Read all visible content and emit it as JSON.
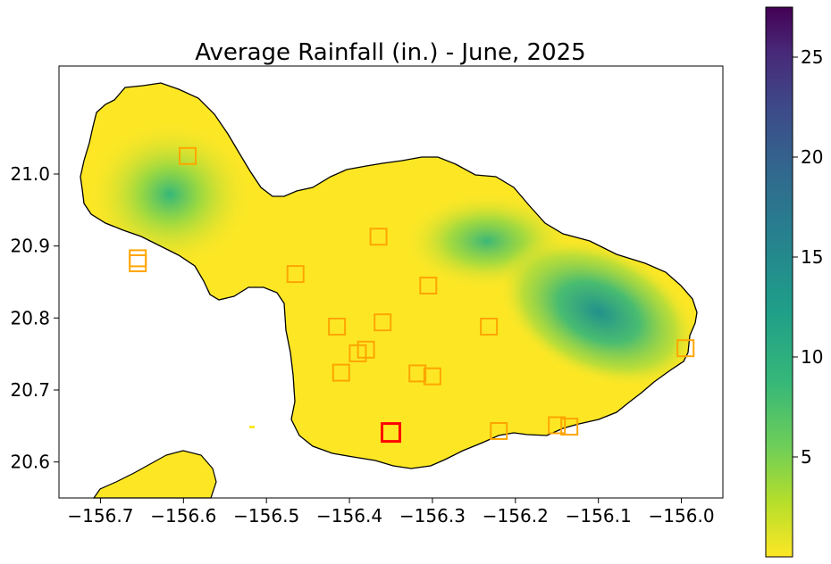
{
  "title": "Average Rainfall (in.) - June, 2025",
  "map": {
    "x_ticks": [
      "−156.7",
      "−156.6",
      "−156.5",
      "−156.4",
      "−156.3",
      "−156.2",
      "−156.1",
      "−156.0"
    ],
    "y_ticks": [
      "20.6",
      "20.7",
      "20.8",
      "20.9",
      "21.0"
    ],
    "colorbar_ticks": [
      "5",
      "10",
      "15",
      "20",
      "25"
    ],
    "colorbar_range": [
      0,
      27.5
    ],
    "colormap": "viridis (reversed: yellow = low, purple = high)",
    "colors": {
      "low": "#fde725",
      "mid_low": "#8fd744",
      "mid": "#35b779",
      "mid_high": "#21918c",
      "high_mid": "#31688e",
      "high": "#440154",
      "coastline": "#000000",
      "station_marker": "#ffa500",
      "selected_station_marker": "#ff0000"
    }
  },
  "chart_data": {
    "type": "heatmap",
    "title": "Average Rainfall (in.) - June, 2025",
    "xlim": [
      -156.75,
      -155.95
    ],
    "ylim": [
      20.55,
      21.15
    ],
    "colorbar_label": "",
    "colorbar_ticks": [
      5,
      10,
      15,
      20,
      25
    ],
    "stations": [
      {
        "lon": -156.595,
        "lat": 21.025
      },
      {
        "lon": -156.655,
        "lat": 20.883
      },
      {
        "lon": -156.655,
        "lat": 20.876
      },
      {
        "lon": -156.465,
        "lat": 20.861
      },
      {
        "lon": -156.365,
        "lat": 20.913
      },
      {
        "lon": -156.305,
        "lat": 20.845
      },
      {
        "lon": -156.415,
        "lat": 20.788
      },
      {
        "lon": -156.36,
        "lat": 20.794
      },
      {
        "lon": -156.232,
        "lat": 20.788
      },
      {
        "lon": -156.38,
        "lat": 20.756
      },
      {
        "lon": -156.39,
        "lat": 20.751
      },
      {
        "lon": -156.41,
        "lat": 20.724
      },
      {
        "lon": -156.318,
        "lat": 20.723
      },
      {
        "lon": -156.3,
        "lat": 20.719
      },
      {
        "lon": -155.995,
        "lat": 20.758
      },
      {
        "lon": -156.22,
        "lat": 20.643
      },
      {
        "lon": -156.15,
        "lat": 20.651
      },
      {
        "lon": -156.135,
        "lat": 20.649
      }
    ],
    "selected_station": {
      "lon": -156.35,
      "lat": 20.641
    },
    "rainfall_maxima": [
      {
        "lon": -156.595,
        "lat": 20.9,
        "approx_value": 11
      },
      {
        "lon": -156.22,
        "lat": 20.84,
        "approx_value": 9
      },
      {
        "lon": -156.09,
        "lat": 20.755,
        "approx_value": 14
      }
    ]
  }
}
